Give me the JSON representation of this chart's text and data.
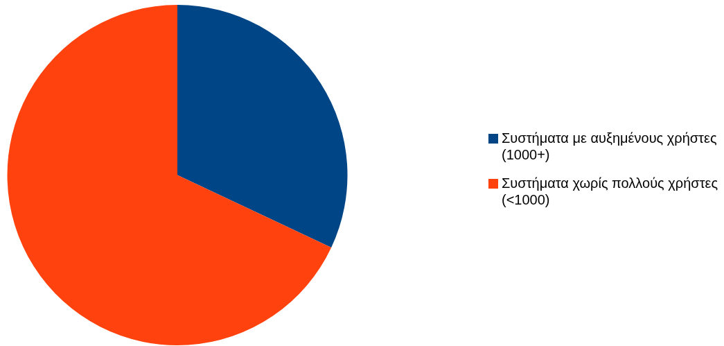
{
  "chart_data": {
    "type": "pie",
    "categories": [
      "Συστήματα με αυξημένους χρήστες (1000+)",
      "Συστήματα χωρίς πολλούς χρήστες (<1000)"
    ],
    "values": [
      32,
      68
    ],
    "colors": [
      "#004586",
      "#ff420e"
    ],
    "legend": "right"
  }
}
